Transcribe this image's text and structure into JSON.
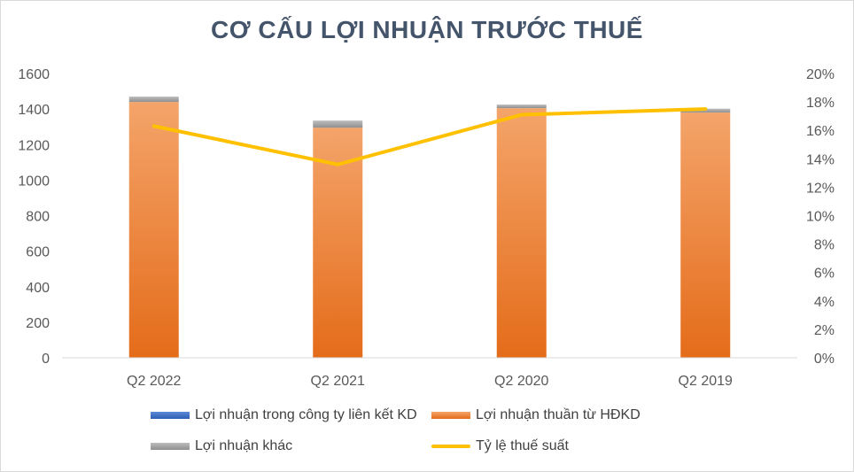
{
  "chart_data": {
    "type": "bar",
    "title": "CƠ CẤU LỢI NHUẬN TRƯỚC THUẾ",
    "categories": [
      "Q2 2022",
      "Q2 2021",
      "Q2 2020",
      "Q2 2019"
    ],
    "stacked": true,
    "series": [
      {
        "name": "Lợi nhuận trong công ty liên kết KD",
        "type": "bar",
        "axis": "left",
        "color": "#4472c4",
        "values": [
          0,
          0,
          0,
          0
        ]
      },
      {
        "name": "Lợi nhuận thuần từ HĐKD",
        "type": "bar",
        "axis": "left",
        "color": "#ed7d31",
        "values": [
          1440,
          1295,
          1405,
          1380
        ]
      },
      {
        "name": "Lợi nhuận khác",
        "type": "bar",
        "axis": "left",
        "color": "#a5a5a5",
        "values": [
          30,
          40,
          20,
          22
        ]
      },
      {
        "name": "Tỷ lệ thuế suất",
        "type": "line",
        "axis": "right",
        "color": "#ffc000",
        "values": [
          16.3,
          13.6,
          17.1,
          17.5
        ]
      }
    ],
    "ylim": [
      0,
      1600
    ],
    "yticks": [
      "0",
      "200",
      "400",
      "600",
      "800",
      "1000",
      "1200",
      "1400",
      "1600"
    ],
    "y2lim": [
      0,
      20
    ],
    "y2ticks": [
      "0%",
      "2%",
      "4%",
      "6%",
      "8%",
      "10%",
      "12%",
      "14%",
      "16%",
      "18%",
      "20%"
    ],
    "legend_position": "bottom",
    "grid": false
  }
}
